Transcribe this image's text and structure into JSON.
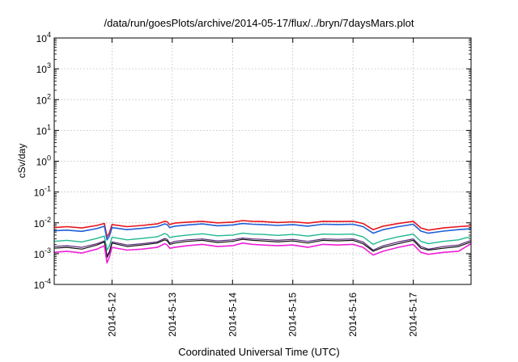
{
  "chart_data": {
    "type": "line",
    "title": "/data/run/goesPlots/archive/2014-05-17/flux/../bryn/7daysMars.plot",
    "xlabel": "Coordinated Universal Time (UTC)",
    "ylabel": "cSv/day",
    "yscale": "log",
    "ylim": [
      0.0001,
      10000
    ],
    "y_ticks": [
      {
        "base": "10",
        "exp": "-4"
      },
      {
        "base": "10",
        "exp": "-3"
      },
      {
        "base": "10",
        "exp": "-2"
      },
      {
        "base": "10",
        "exp": "-1"
      },
      {
        "base": "10",
        "exp": "0"
      },
      {
        "base": "10",
        "exp": "1"
      },
      {
        "base": "10",
        "exp": "2"
      },
      {
        "base": "10",
        "exp": "3"
      },
      {
        "base": "10",
        "exp": "4"
      }
    ],
    "x_range": [
      "2014-05-11 01:00",
      "2014-05-17 23:00"
    ],
    "x_ticks": [
      "2014-5-12",
      "2014-5-13",
      "2014-5-14",
      "2014-5-15",
      "2014-5-16",
      "2014-5-17"
    ],
    "grid": true,
    "x": [
      "2014-05-11 01:00",
      "2014-05-11 06:00",
      "2014-05-11 12:00",
      "2014-05-11 18:00",
      "2014-05-11 21:00",
      "2014-05-11 22:00",
      "2014-05-11 23:00",
      "2014-05-12 00:00",
      "2014-05-12 06:00",
      "2014-05-12 12:00",
      "2014-05-12 18:00",
      "2014-05-12 21:00",
      "2014-05-12 22:00",
      "2014-05-12 23:00",
      "2014-05-13 01:00",
      "2014-05-13 06:00",
      "2014-05-13 12:00",
      "2014-05-13 18:00",
      "2014-05-14 00:00",
      "2014-05-14 04:00",
      "2014-05-14 08:00",
      "2014-05-14 12:00",
      "2014-05-14 18:00",
      "2014-05-15 00:00",
      "2014-05-15 06:00",
      "2014-05-15 12:00",
      "2014-05-15 18:00",
      "2014-05-16 00:00",
      "2014-05-16 04:00",
      "2014-05-16 08:00",
      "2014-05-16 12:00",
      "2014-05-16 18:00",
      "2014-05-17 00:00",
      "2014-05-17 03:00",
      "2014-05-17 06:00",
      "2014-05-17 12:00",
      "2014-05-17 18:00",
      "2014-05-17 23:00"
    ],
    "series": [
      {
        "color": "#e8141c",
        "width": 1.6,
        "values": [
          0.007,
          0.0075,
          0.0068,
          0.0082,
          0.0095,
          0.0035,
          0.0048,
          0.0088,
          0.0075,
          0.0082,
          0.0092,
          0.0112,
          0.0108,
          0.0088,
          0.0098,
          0.0105,
          0.0112,
          0.01,
          0.0105,
          0.0118,
          0.0112,
          0.011,
          0.0102,
          0.0108,
          0.0098,
          0.0112,
          0.011,
          0.0112,
          0.0095,
          0.006,
          0.0078,
          0.0095,
          0.0112,
          0.0068,
          0.0058,
          0.0068,
          0.0075,
          0.008
        ]
      },
      {
        "color": "#1f5fd8",
        "width": 1.6,
        "values": [
          0.0055,
          0.0058,
          0.0053,
          0.0065,
          0.0078,
          0.0028,
          0.0038,
          0.007,
          0.006,
          0.0066,
          0.0075,
          0.0092,
          0.0088,
          0.007,
          0.0078,
          0.0085,
          0.0092,
          0.008,
          0.0085,
          0.0095,
          0.009,
          0.0088,
          0.0082,
          0.0088,
          0.0078,
          0.009,
          0.0088,
          0.009,
          0.0075,
          0.0046,
          0.006,
          0.0075,
          0.009,
          0.0054,
          0.0046,
          0.0054,
          0.006,
          0.0064
        ]
      },
      {
        "color": "#20b890",
        "width": 1.4,
        "values": [
          0.0025,
          0.0027,
          0.0024,
          0.0031,
          0.0037,
          0.0013,
          0.0018,
          0.0034,
          0.0028,
          0.0031,
          0.0035,
          0.0045,
          0.0042,
          0.0033,
          0.0036,
          0.004,
          0.0044,
          0.0038,
          0.004,
          0.0046,
          0.0043,
          0.0042,
          0.0039,
          0.0042,
          0.0037,
          0.0043,
          0.0042,
          0.0043,
          0.0035,
          0.002,
          0.0027,
          0.0035,
          0.0043,
          0.0025,
          0.0021,
          0.0025,
          0.0028,
          0.0036
        ]
      },
      {
        "color": "#5a2a7a",
        "width": 1.2,
        "values": [
          0.0017,
          0.0018,
          0.0016,
          0.0021,
          0.0026,
          0.00085,
          0.0012,
          0.0024,
          0.0019,
          0.0021,
          0.0024,
          0.0031,
          0.0029,
          0.0022,
          0.0025,
          0.0028,
          0.003,
          0.0026,
          0.0028,
          0.0032,
          0.003,
          0.0029,
          0.0027,
          0.0029,
          0.0025,
          0.003,
          0.0029,
          0.003,
          0.0024,
          0.0013,
          0.0018,
          0.0024,
          0.003,
          0.0017,
          0.0014,
          0.0017,
          0.0019,
          0.0027
        ]
      },
      {
        "color": "#101010",
        "width": 1.2,
        "values": [
          0.0015,
          0.0016,
          0.0014,
          0.0019,
          0.0024,
          0.00075,
          0.0011,
          0.0022,
          0.0017,
          0.0019,
          0.0022,
          0.0028,
          0.0026,
          0.002,
          0.0022,
          0.0025,
          0.0027,
          0.0023,
          0.0025,
          0.0029,
          0.0027,
          0.0026,
          0.0024,
          0.0026,
          0.0022,
          0.0027,
          0.0026,
          0.0027,
          0.0021,
          0.0012,
          0.0016,
          0.0021,
          0.0027,
          0.0015,
          0.0013,
          0.0015,
          0.0017,
          0.0024
        ]
      },
      {
        "color": "#f01fd8",
        "width": 1.6,
        "values": [
          0.0011,
          0.0012,
          0.00105,
          0.0014,
          0.0018,
          0.0005,
          0.0008,
          0.0016,
          0.0013,
          0.0014,
          0.0016,
          0.0021,
          0.0019,
          0.0015,
          0.0016,
          0.0018,
          0.002,
          0.0017,
          0.0018,
          0.0022,
          0.002,
          0.0019,
          0.0018,
          0.0019,
          0.0016,
          0.002,
          0.0019,
          0.002,
          0.0016,
          0.0009,
          0.0012,
          0.0016,
          0.002,
          0.0011,
          0.00095,
          0.0011,
          0.0012,
          0.0021
        ]
      }
    ]
  }
}
